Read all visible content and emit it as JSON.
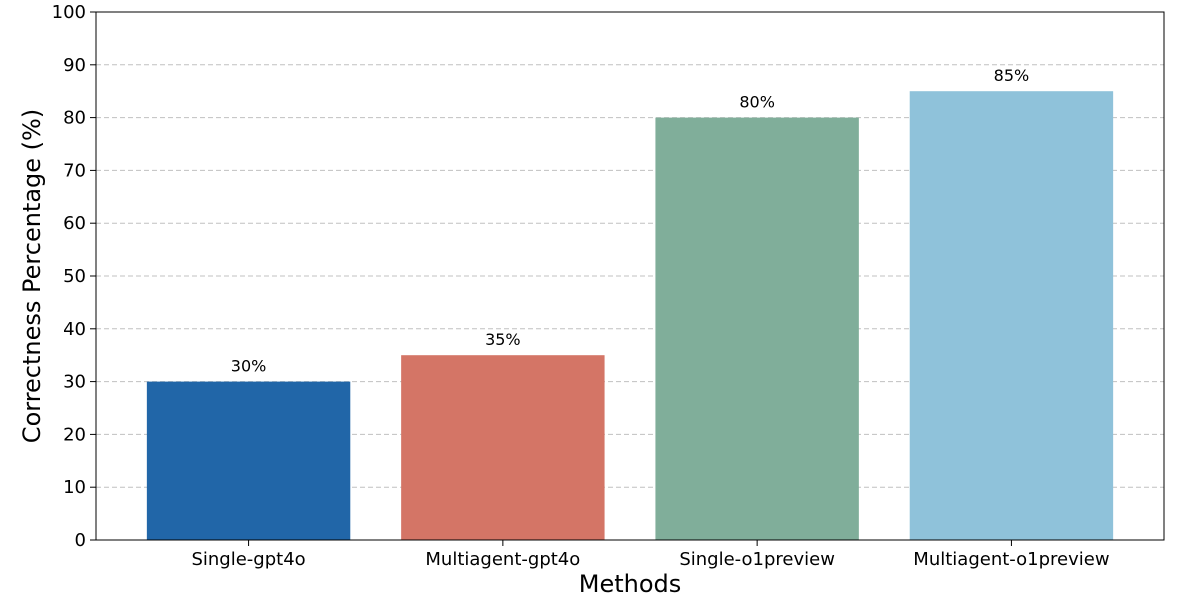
{
  "chart_data": {
    "type": "bar",
    "categories": [
      "Single-gpt4o",
      "Multiagent-gpt4o",
      "Single-o1preview",
      "Multiagent-o1preview"
    ],
    "values": [
      30,
      35,
      80,
      85
    ],
    "value_labels": [
      "30%",
      "35%",
      "80%",
      "85%"
    ],
    "colors": [
      "#2166a8",
      "#d47566",
      "#80ae9a",
      "#8fc2da"
    ],
    "title": "",
    "xlabel": "Methods",
    "ylabel": "Correctness Percentage (%)",
    "ylim": [
      0,
      100
    ],
    "yticks": [
      0,
      10,
      20,
      30,
      40,
      50,
      60,
      70,
      80,
      90,
      100
    ],
    "grid": "y-dashed",
    "legend": "none"
  }
}
